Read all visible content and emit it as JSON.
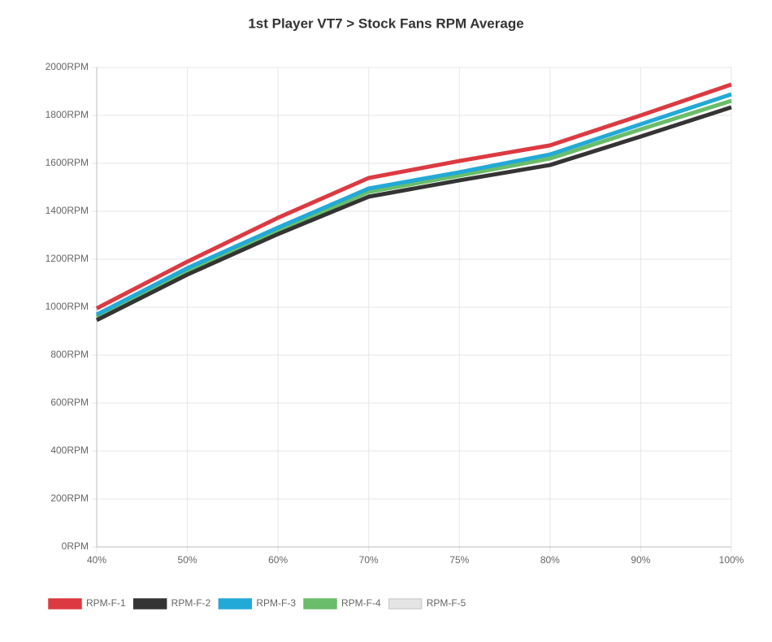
{
  "chart_data": {
    "type": "line",
    "title": "1st Player VT7 > Stock Fans RPM Average",
    "categories": [
      "40%",
      "50%",
      "60%",
      "70%",
      "75%",
      "80%",
      "90%",
      "100%"
    ],
    "series": [
      {
        "name": "RPM-F-1",
        "color": "#dc3a42",
        "values": [
          995,
          1190,
          1373,
          1539,
          1610,
          1675,
          1800,
          1929
        ]
      },
      {
        "name": "RPM-F-2",
        "color": "#343434",
        "values": [
          946,
          1136,
          1305,
          1461,
          1529,
          1593,
          1712,
          1834
        ]
      },
      {
        "name": "RPM-F-3",
        "color": "#23a9d6",
        "values": [
          969,
          1163,
          1332,
          1495,
          1563,
          1637,
          1763,
          1888
        ]
      },
      {
        "name": "RPM-F-4",
        "color": "#6abd6a",
        "values": [
          959,
          1153,
          1319,
          1481,
          1549,
          1620,
          1742,
          1861
        ]
      },
      {
        "name": "RPM-F-5",
        "color": "#e5e5e5",
        "values": [
          null,
          null,
          null,
          null,
          null,
          null,
          null,
          null
        ]
      }
    ],
    "ylim": [
      0,
      2000
    ],
    "yticks": [
      {
        "value": 0,
        "label": "0RPM"
      },
      {
        "value": 200,
        "label": "200RPM"
      },
      {
        "value": 400,
        "label": "400RPM"
      },
      {
        "value": 600,
        "label": "600RPM"
      },
      {
        "value": 800,
        "label": "800RPM"
      },
      {
        "value": 1000,
        "label": "1000RPM"
      },
      {
        "value": 1200,
        "label": "1200RPM"
      },
      {
        "value": 1400,
        "label": "1400RPM"
      },
      {
        "value": 1600,
        "label": "1600RPM"
      },
      {
        "value": 1800,
        "label": "1800RPM"
      },
      {
        "value": 2000,
        "label": "2000RPM"
      }
    ],
    "grid": true,
    "legend": "bottom"
  }
}
